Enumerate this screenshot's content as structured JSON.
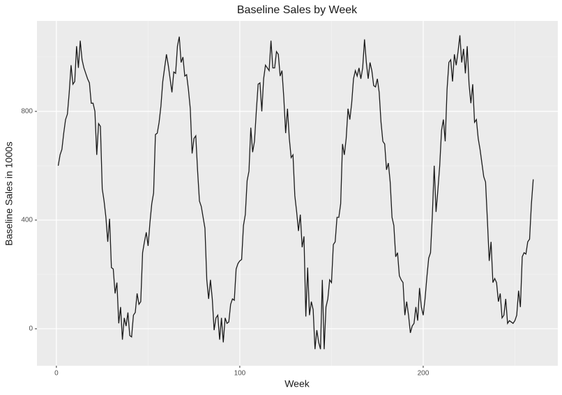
{
  "chart_data": {
    "type": "line",
    "title": "Baseline Sales by Week",
    "x_label": "Week",
    "y_label": "Baseline Sales in 1000s",
    "x": [
      1,
      2,
      3,
      4,
      5,
      6,
      7,
      8,
      9,
      10,
      11,
      12,
      13,
      14,
      15,
      16,
      17,
      18,
      19,
      20,
      21,
      22,
      23,
      24,
      25,
      26,
      27,
      28,
      29,
      30,
      31,
      32,
      33,
      34,
      35,
      36,
      37,
      38,
      39,
      40,
      41,
      42,
      43,
      44,
      45,
      46,
      47,
      48,
      49,
      50,
      51,
      52,
      53,
      54,
      55,
      56,
      57,
      58,
      59,
      60,
      61,
      62,
      63,
      64,
      65,
      66,
      67,
      68,
      69,
      70,
      71,
      72,
      73,
      74,
      75,
      76,
      77,
      78,
      79,
      80,
      81,
      82,
      83,
      84,
      85,
      86,
      87,
      88,
      89,
      90,
      91,
      92,
      93,
      94,
      95,
      96,
      97,
      98,
      99,
      100,
      101,
      102,
      103,
      104,
      105,
      106,
      107,
      108,
      109,
      110,
      111,
      112,
      113,
      114,
      115,
      116,
      117,
      118,
      119,
      120,
      121,
      122,
      123,
      124,
      125,
      126,
      127,
      128,
      129,
      130,
      131,
      132,
      133,
      134,
      135,
      136,
      137,
      138,
      139,
      140,
      141,
      142,
      143,
      144,
      145,
      146,
      147,
      148,
      149,
      150,
      151,
      152,
      153,
      154,
      155,
      156,
      157,
      158,
      159,
      160,
      161,
      162,
      163,
      164,
      165,
      166,
      167,
      168,
      169,
      170,
      171,
      172,
      173,
      174,
      175,
      176,
      177,
      178,
      179,
      180,
      181,
      182,
      183,
      184,
      185,
      186,
      187,
      188,
      189,
      190,
      191,
      192,
      193,
      194,
      195,
      196,
      197,
      198,
      199,
      200,
      201,
      202,
      203,
      204,
      205,
      206,
      207,
      208,
      209,
      210,
      211,
      212,
      213,
      214,
      215,
      216,
      217,
      218,
      219,
      220,
      221,
      222,
      223,
      224,
      225,
      226,
      227,
      228,
      229,
      230,
      231,
      232,
      233,
      234,
      235,
      236,
      237,
      238,
      239,
      240,
      241,
      242,
      243,
      244,
      245,
      246,
      247,
      248,
      249,
      250,
      251,
      252,
      253,
      254,
      255,
      256,
      257,
      258,
      259,
      260
    ],
    "series": [
      {
        "color": "#1a1a1a",
        "values": [
          600,
          640,
          660,
          720,
          770,
          790,
          870,
          970,
          900,
          910,
          1040,
          960,
          1060,
          990,
          960,
          940,
          920,
          905,
          830,
          830,
          800,
          640,
          755,
          745,
          515,
          470,
          410,
          320,
          405,
          225,
          220,
          130,
          170,
          20,
          80,
          -40,
          40,
          10,
          60,
          -25,
          -30,
          50,
          60,
          130,
          90,
          100,
          280,
          320,
          355,
          305,
          390,
          460,
          500,
          715,
          720,
          760,
          820,
          910,
          960,
          1010,
          970,
          920,
          870,
          945,
          940,
          1040,
          1075,
          980,
          1000,
          930,
          935,
          880,
          810,
          645,
          700,
          710,
          580,
          470,
          450,
          410,
          370,
          180,
          110,
          180,
          110,
          -5,
          40,
          50,
          -40,
          40,
          -50,
          40,
          20,
          25,
          90,
          110,
          105,
          220,
          240,
          250,
          255,
          380,
          420,
          545,
          580,
          740,
          650,
          690,
          800,
          900,
          905,
          800,
          920,
          970,
          960,
          950,
          1060,
          960,
          960,
          1020,
          1010,
          930,
          950,
          850,
          720,
          810,
          700,
          630,
          640,
          490,
          430,
          360,
          420,
          300,
          340,
          45,
          225,
          50,
          100,
          70,
          -75,
          -5,
          -50,
          -75,
          180,
          -75,
          80,
          110,
          180,
          170,
          310,
          320,
          410,
          410,
          460,
          680,
          640,
          700,
          810,
          770,
          830,
          920,
          950,
          930,
          960,
          920,
          960,
          1065,
          980,
          920,
          980,
          950,
          895,
          890,
          920,
          870,
          760,
          690,
          680,
          585,
          610,
          540,
          410,
          380,
          265,
          280,
          195,
          180,
          170,
          50,
          100,
          50,
          -15,
          10,
          20,
          80,
          30,
          150,
          80,
          50,
          110,
          190,
          260,
          280,
          420,
          600,
          430,
          510,
          600,
          730,
          770,
          690,
          880,
          980,
          990,
          910,
          1010,
          970,
          1020,
          1080,
          980,
          1030,
          940,
          1040,
          900,
          830,
          900,
          760,
          770,
          700,
          660,
          610,
          560,
          540,
          400,
          250,
          320,
          170,
          185,
          170,
          100,
          130,
          40,
          50,
          110,
          20,
          30,
          25,
          20,
          30,
          50,
          140,
          80,
          265,
          280,
          275,
          320,
          330,
          460,
          550
        ]
      }
    ],
    "xlim": [
      -10.6,
      273.4
    ],
    "ylim": [
      -136,
      1133
    ],
    "xticks": [
      0,
      100,
      200
    ],
    "yticks": [
      0,
      400,
      800
    ],
    "x_minor_breaks": [
      50,
      150,
      250
    ],
    "y_minor_breaks": [
      200,
      600,
      1000
    ],
    "grid": true
  }
}
